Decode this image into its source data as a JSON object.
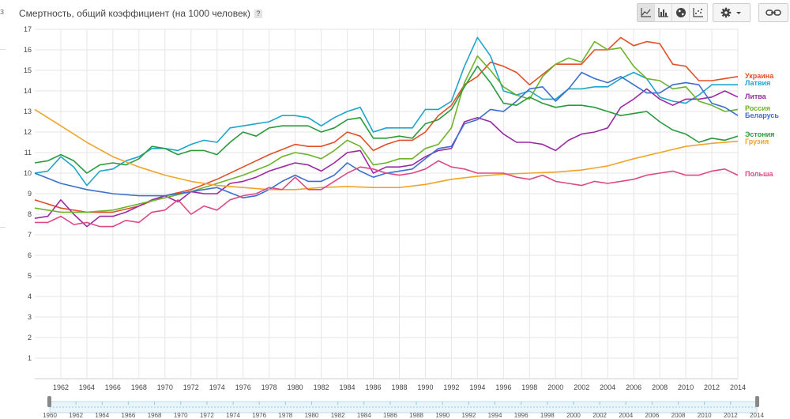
{
  "header": {
    "title": "Смертность, общий коэффициент (на 1000 человек)",
    "help_label": "?"
  },
  "left_edge": {
    "mark": "з"
  },
  "toolbar": {
    "chart_types": [
      {
        "icon": "line-chart-icon",
        "active": true
      },
      {
        "icon": "bar-chart-icon",
        "active": false
      },
      {
        "icon": "globe-map-icon",
        "active": false
      },
      {
        "icon": "scatter-chart-icon",
        "active": false
      }
    ],
    "settings_icon": "gear-icon",
    "settings_dropdown_icon": "caret-down-icon",
    "link_icon": "link-icon"
  },
  "chart_data": {
    "type": "line",
    "title": "Смертность, общий коэффициент (на 1000 человек)",
    "xlabel": "",
    "ylabel": "",
    "xlim": [
      1960,
      2014
    ],
    "ylim": [
      0,
      17
    ],
    "x_ticks": [
      "1962",
      "1964",
      "1966",
      "1968",
      "1970",
      "1972",
      "1974",
      "1976",
      "1978",
      "1980",
      "1982",
      "1984",
      "1986",
      "1988",
      "1990",
      "1992",
      "1994",
      "1996",
      "1998",
      "2000",
      "2002",
      "2004",
      "2006",
      "2008",
      "2010",
      "2012",
      "2014"
    ],
    "y_ticks": [
      "1",
      "2",
      "3",
      "4",
      "5",
      "6",
      "7",
      "8",
      "9",
      "10",
      "11",
      "12",
      "13",
      "14",
      "15",
      "16",
      "17"
    ],
    "grid": true,
    "legend": "right, at the end of each line",
    "range_slider": {
      "ticks": [
        "1960",
        "1962",
        "1964",
        "1966",
        "1968",
        "1970",
        "1972",
        "1974",
        "1976",
        "1978",
        "1980",
        "1982",
        "1984",
        "1986",
        "1988",
        "1990",
        "1992",
        "1994",
        "1996",
        "1998",
        "2000",
        "2002",
        "2004",
        "2006",
        "2008",
        "2010",
        "2012",
        "2014"
      ]
    },
    "series": [
      {
        "name": "Украина",
        "color": "#e0502a",
        "x": [
          1960,
          1962,
          1964,
          1966,
          1968,
          1970,
          1972,
          1974,
          1976,
          1978,
          1980,
          1981,
          1982,
          1983,
          1984,
          1985,
          1986,
          1987,
          1988,
          1989,
          1990,
          1991,
          1992,
          1993,
          1994,
          1995,
          1996,
          1997,
          1998,
          1999,
          2000,
          2001,
          2002,
          2003,
          2004,
          2005,
          2006,
          2007,
          2008,
          2009,
          2010,
          2011,
          2012,
          2013,
          2014
        ],
        "y": [
          8.7,
          8.3,
          8.1,
          8.1,
          8.4,
          8.9,
          9.2,
          9.7,
          10.3,
          10.9,
          11.4,
          11.3,
          11.3,
          11.5,
          12.0,
          11.8,
          11.1,
          11.4,
          11.6,
          11.6,
          12.0,
          12.8,
          13.3,
          14.3,
          14.7,
          15.4,
          15.2,
          14.9,
          14.3,
          14.8,
          15.3,
          15.3,
          15.3,
          16.0,
          16.0,
          16.6,
          16.2,
          16.4,
          16.3,
          15.3,
          15.2,
          14.5,
          14.5,
          14.6,
          14.7
        ]
      },
      {
        "name": "Латвия",
        "color": "#1ea5c9",
        "x": [
          1960,
          1961,
          1962,
          1963,
          1964,
          1965,
          1966,
          1967,
          1968,
          1969,
          1970,
          1971,
          1972,
          1973,
          1974,
          1975,
          1976,
          1977,
          1978,
          1979,
          1980,
          1981,
          1982,
          1983,
          1984,
          1985,
          1986,
          1987,
          1988,
          1989,
          1990,
          1991,
          1992,
          1993,
          1994,
          1995,
          1996,
          1997,
          1998,
          1999,
          2000,
          2001,
          2002,
          2003,
          2004,
          2005,
          2006,
          2007,
          2008,
          2009,
          2010,
          2011,
          2012,
          2013,
          2014
        ],
        "y": [
          10.0,
          10.1,
          10.8,
          10.3,
          9.4,
          10.1,
          10.2,
          10.6,
          10.8,
          11.2,
          11.2,
          11.1,
          11.4,
          11.6,
          11.5,
          12.2,
          12.3,
          12.4,
          12.5,
          12.8,
          12.8,
          12.7,
          12.3,
          12.7,
          13.0,
          13.2,
          12.0,
          12.2,
          12.2,
          12.2,
          13.1,
          13.1,
          13.5,
          15.2,
          16.6,
          15.7,
          14.0,
          13.8,
          14.0,
          13.6,
          13.6,
          14.1,
          14.1,
          14.2,
          14.2,
          14.6,
          14.9,
          14.6,
          13.7,
          13.5,
          13.4,
          13.8,
          14.3,
          14.3,
          14.3
        ]
      },
      {
        "name": "Литва",
        "color": "#9b2aa3",
        "x": [
          1960,
          1961,
          1962,
          1963,
          1964,
          1965,
          1966,
          1967,
          1968,
          1969,
          1970,
          1971,
          1972,
          1973,
          1974,
          1975,
          1976,
          1977,
          1978,
          1979,
          1980,
          1981,
          1982,
          1983,
          1984,
          1985,
          1986,
          1987,
          1988,
          1989,
          1990,
          1991,
          1992,
          1993,
          1994,
          1995,
          1996,
          1997,
          1998,
          1999,
          2000,
          2001,
          2002,
          2003,
          2004,
          2005,
          2006,
          2007,
          2008,
          2009,
          2010,
          2011,
          2012,
          2013,
          2014
        ],
        "y": [
          7.8,
          7.9,
          8.7,
          8.0,
          7.4,
          7.9,
          7.9,
          8.1,
          8.4,
          8.7,
          8.9,
          8.6,
          9.1,
          9.0,
          9.0,
          9.5,
          9.6,
          9.8,
          10.1,
          10.3,
          10.5,
          10.4,
          10.1,
          10.5,
          11.0,
          11.1,
          10.0,
          10.3,
          10.3,
          10.4,
          10.8,
          11.1,
          11.2,
          12.5,
          12.7,
          12.5,
          11.9,
          11.5,
          11.5,
          11.4,
          11.1,
          11.6,
          11.9,
          12.0,
          12.2,
          13.2,
          13.6,
          14.1,
          13.6,
          13.3,
          13.6,
          13.6,
          13.7,
          14.0,
          13.7
        ]
      },
      {
        "name": "Россия",
        "color": "#6db32b",
        "x": [
          1960,
          1962,
          1964,
          1966,
          1968,
          1970,
          1972,
          1974,
          1976,
          1978,
          1979,
          1980,
          1981,
          1982,
          1983,
          1984,
          1985,
          1986,
          1987,
          1988,
          1989,
          1990,
          1991,
          1992,
          1993,
          1994,
          1995,
          1996,
          1997,
          1998,
          1999,
          2000,
          2001,
          2002,
          2003,
          2004,
          2005,
          2006,
          2007,
          2008,
          2009,
          2010,
          2011,
          2012,
          2013,
          2014
        ],
        "y": [
          8.3,
          8.1,
          8.1,
          8.2,
          8.5,
          8.8,
          9.1,
          9.5,
          9.9,
          10.4,
          10.8,
          11.0,
          10.9,
          10.7,
          11.1,
          11.6,
          11.3,
          10.4,
          10.5,
          10.7,
          10.7,
          11.2,
          11.4,
          12.2,
          14.4,
          15.7,
          15.0,
          14.2,
          13.8,
          13.6,
          14.7,
          15.3,
          15.6,
          15.4,
          16.4,
          16.0,
          16.1,
          15.2,
          14.6,
          14.5,
          14.1,
          14.2,
          13.5,
          13.3,
          13.0,
          13.1
        ]
      },
      {
        "name": "Беларусь",
        "color": "#3d6fd0",
        "x": [
          1960,
          1962,
          1964,
          1966,
          1968,
          1970,
          1972,
          1974,
          1976,
          1977,
          1978,
          1979,
          1980,
          1981,
          1982,
          1983,
          1984,
          1985,
          1986,
          1987,
          1988,
          1989,
          1990,
          1991,
          1992,
          1993,
          1994,
          1995,
          1996,
          1997,
          1998,
          1999,
          2000,
          2001,
          2002,
          2003,
          2004,
          2005,
          2006,
          2007,
          2008,
          2009,
          2010,
          2011,
          2012,
          2013,
          2014
        ],
        "y": [
          10.0,
          9.5,
          9.2,
          9.0,
          8.9,
          8.9,
          9.1,
          9.3,
          8.8,
          8.9,
          9.2,
          9.6,
          9.9,
          9.6,
          9.6,
          9.9,
          10.5,
          10.1,
          9.8,
          10.0,
          10.1,
          10.2,
          10.7,
          11.2,
          11.3,
          12.4,
          12.6,
          13.1,
          13.0,
          13.5,
          14.1,
          14.2,
          13.5,
          14.1,
          14.9,
          14.6,
          14.4,
          14.7,
          14.3,
          13.9,
          13.9,
          14.3,
          14.4,
          14.3,
          13.4,
          13.2,
          12.8
        ]
      },
      {
        "name": "Эстония",
        "color": "#2a9a3c",
        "x": [
          1960,
          1961,
          1962,
          1963,
          1964,
          1965,
          1966,
          1967,
          1968,
          1969,
          1970,
          1971,
          1972,
          1973,
          1974,
          1975,
          1976,
          1977,
          1978,
          1979,
          1980,
          1981,
          1982,
          1983,
          1984,
          1985,
          1986,
          1987,
          1988,
          1989,
          1990,
          1991,
          1992,
          1993,
          1994,
          1995,
          1996,
          1997,
          1998,
          1999,
          2000,
          2001,
          2002,
          2003,
          2004,
          2005,
          2006,
          2007,
          2008,
          2009,
          2010,
          2011,
          2012,
          2013,
          2014
        ],
        "y": [
          10.5,
          10.6,
          10.9,
          10.6,
          10.0,
          10.4,
          10.5,
          10.4,
          10.7,
          11.3,
          11.2,
          10.9,
          11.1,
          11.1,
          10.9,
          11.5,
          12.0,
          11.8,
          12.2,
          12.3,
          12.3,
          12.3,
          12.0,
          12.2,
          12.6,
          12.7,
          11.7,
          11.7,
          11.8,
          11.7,
          12.4,
          12.6,
          13.1,
          14.2,
          15.2,
          14.4,
          13.4,
          13.3,
          13.7,
          13.4,
          13.2,
          13.3,
          13.3,
          13.2,
          13.0,
          12.8,
          12.9,
          13.0,
          12.5,
          12.1,
          11.9,
          11.5,
          11.7,
          11.6,
          11.8
        ]
      },
      {
        "name": "Грузия",
        "color": "#f0a429",
        "x": [
          1960,
          1962,
          1964,
          1966,
          1968,
          1970,
          1972,
          1974,
          1976,
          1978,
          1980,
          1982,
          1984,
          1986,
          1988,
          1990,
          1992,
          1994,
          1996,
          1998,
          2000,
          2002,
          2004,
          2006,
          2008,
          2010,
          2012,
          2014
        ],
        "y": [
          13.1,
          12.3,
          11.5,
          10.8,
          10.3,
          9.9,
          9.6,
          9.4,
          9.3,
          9.2,
          9.2,
          9.3,
          9.35,
          9.3,
          9.3,
          9.45,
          9.7,
          9.85,
          9.95,
          10.0,
          10.05,
          10.15,
          10.35,
          10.7,
          11.0,
          11.3,
          11.45,
          11.55
        ]
      },
      {
        "name": "Польша",
        "color": "#dc4a86",
        "x": [
          1960,
          1961,
          1962,
          1963,
          1964,
          1965,
          1966,
          1967,
          1968,
          1969,
          1970,
          1971,
          1972,
          1973,
          1974,
          1975,
          1976,
          1977,
          1978,
          1979,
          1980,
          1981,
          1982,
          1983,
          1984,
          1985,
          1986,
          1987,
          1988,
          1989,
          1990,
          1991,
          1992,
          1993,
          1994,
          1995,
          1996,
          1997,
          1998,
          1999,
          2000,
          2001,
          2002,
          2003,
          2004,
          2005,
          2006,
          2007,
          2008,
          2009,
          2010,
          2011,
          2012,
          2013,
          2014
        ],
        "y": [
          7.6,
          7.6,
          7.9,
          7.5,
          7.6,
          7.4,
          7.4,
          7.7,
          7.6,
          8.1,
          8.2,
          8.7,
          8.0,
          8.4,
          8.2,
          8.7,
          8.9,
          9.0,
          9.3,
          9.2,
          9.8,
          9.2,
          9.2,
          9.6,
          10.0,
          10.3,
          10.2,
          10.0,
          9.9,
          10.0,
          10.2,
          10.6,
          10.3,
          10.2,
          10.0,
          10.0,
          10.0,
          9.8,
          9.7,
          9.9,
          9.6,
          9.5,
          9.4,
          9.6,
          9.5,
          9.6,
          9.7,
          9.9,
          10.0,
          10.1,
          9.9,
          9.9,
          10.1,
          10.2,
          9.9
        ]
      }
    ]
  }
}
